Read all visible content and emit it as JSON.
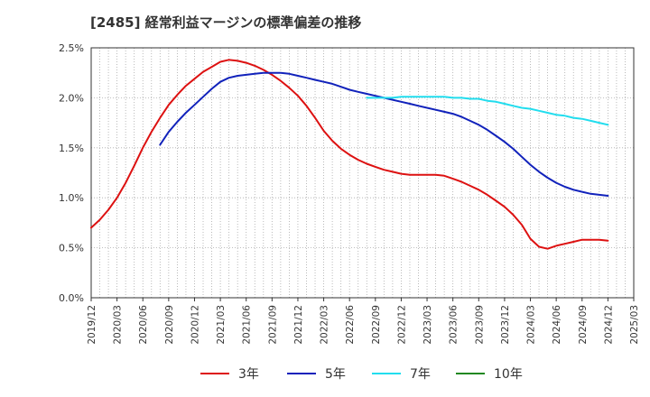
{
  "title": "[2485]  経常利益マージンの標準偏差の推移",
  "colors": {
    "3y": "#dd1111",
    "5y": "#1122bb",
    "7y": "#22ddee",
    "10y": "#228822",
    "grid": "#aaaaaa",
    "axis": "#333333"
  },
  "chart_data": {
    "type": "line",
    "title": "[2485]  経常利益マージンの標準偏差の推移",
    "xlabel": "",
    "ylabel": "",
    "ylim": [
      0,
      2.5
    ],
    "yticks": [
      0,
      0.5,
      1.0,
      1.5,
      2.0,
      2.5
    ],
    "ytick_labels": [
      "0.0%",
      "0.5%",
      "1.0%",
      "1.5%",
      "2.0%",
      "2.5%"
    ],
    "x_start": "2019/12",
    "x_end": "2025/03",
    "xtick_labels": [
      "2019/12",
      "2020/03",
      "2020/06",
      "2020/09",
      "2020/12",
      "2021/03",
      "2021/06",
      "2021/09",
      "2021/12",
      "2022/03",
      "2022/06",
      "2022/09",
      "2022/12",
      "2023/03",
      "2023/06",
      "2023/09",
      "2023/12",
      "2024/03",
      "2024/06",
      "2024/09",
      "2024/12",
      "2025/03"
    ],
    "grid": true,
    "legend_position": "bottom",
    "series": [
      {
        "name": "3年",
        "color": "#dd1111",
        "points": [
          [
            "2019/12",
            0.7
          ],
          [
            "2020/01",
            0.78
          ],
          [
            "2020/02",
            0.88
          ],
          [
            "2020/03",
            1.0
          ],
          [
            "2020/04",
            1.15
          ],
          [
            "2020/05",
            1.32
          ],
          [
            "2020/06",
            1.5
          ],
          [
            "2020/07",
            1.66
          ],
          [
            "2020/08",
            1.8
          ],
          [
            "2020/09",
            1.93
          ],
          [
            "2020/10",
            2.03
          ],
          [
            "2020/11",
            2.12
          ],
          [
            "2020/12",
            2.19
          ],
          [
            "2021/01",
            2.26
          ],
          [
            "2021/02",
            2.31
          ],
          [
            "2021/03",
            2.36
          ],
          [
            "2021/04",
            2.38
          ],
          [
            "2021/05",
            2.37
          ],
          [
            "2021/06",
            2.35
          ],
          [
            "2021/07",
            2.32
          ],
          [
            "2021/08",
            2.28
          ],
          [
            "2021/09",
            2.23
          ],
          [
            "2021/10",
            2.17
          ],
          [
            "2021/11",
            2.1
          ],
          [
            "2021/12",
            2.02
          ],
          [
            "2022/01",
            1.92
          ],
          [
            "2022/02",
            1.8
          ],
          [
            "2022/03",
            1.67
          ],
          [
            "2022/04",
            1.57
          ],
          [
            "2022/05",
            1.49
          ],
          [
            "2022/06",
            1.43
          ],
          [
            "2022/07",
            1.38
          ],
          [
            "2022/08",
            1.34
          ],
          [
            "2022/09",
            1.31
          ],
          [
            "2022/10",
            1.28
          ],
          [
            "2022/11",
            1.26
          ],
          [
            "2022/12",
            1.24
          ],
          [
            "2023/01",
            1.23
          ],
          [
            "2023/02",
            1.23
          ],
          [
            "2023/03",
            1.23
          ],
          [
            "2023/04",
            1.23
          ],
          [
            "2023/05",
            1.22
          ],
          [
            "2023/06",
            1.19
          ],
          [
            "2023/07",
            1.16
          ],
          [
            "2023/08",
            1.12
          ],
          [
            "2023/09",
            1.08
          ],
          [
            "2023/10",
            1.03
          ],
          [
            "2023/11",
            0.97
          ],
          [
            "2023/12",
            0.91
          ],
          [
            "2024/01",
            0.83
          ],
          [
            "2024/02",
            0.73
          ],
          [
            "2024/03",
            0.59
          ],
          [
            "2024/04",
            0.51
          ],
          [
            "2024/05",
            0.49
          ],
          [
            "2024/06",
            0.52
          ],
          [
            "2024/07",
            0.54
          ],
          [
            "2024/08",
            0.56
          ],
          [
            "2024/09",
            0.58
          ],
          [
            "2024/10",
            0.58
          ],
          [
            "2024/11",
            0.58
          ],
          [
            "2024/12",
            0.57
          ]
        ]
      },
      {
        "name": "5年",
        "color": "#1122bb",
        "points": [
          [
            "2020/08",
            1.53
          ],
          [
            "2020/09",
            1.66
          ],
          [
            "2020/10",
            1.76
          ],
          [
            "2020/11",
            1.85
          ],
          [
            "2020/12",
            1.93
          ],
          [
            "2021/01",
            2.01
          ],
          [
            "2021/02",
            2.09
          ],
          [
            "2021/03",
            2.16
          ],
          [
            "2021/04",
            2.2
          ],
          [
            "2021/05",
            2.22
          ],
          [
            "2021/06",
            2.23
          ],
          [
            "2021/07",
            2.24
          ],
          [
            "2021/08",
            2.25
          ],
          [
            "2021/09",
            2.25
          ],
          [
            "2021/10",
            2.25
          ],
          [
            "2021/11",
            2.24
          ],
          [
            "2021/12",
            2.22
          ],
          [
            "2022/01",
            2.2
          ],
          [
            "2022/02",
            2.18
          ],
          [
            "2022/03",
            2.16
          ],
          [
            "2022/04",
            2.14
          ],
          [
            "2022/05",
            2.11
          ],
          [
            "2022/06",
            2.08
          ],
          [
            "2022/07",
            2.06
          ],
          [
            "2022/08",
            2.04
          ],
          [
            "2022/09",
            2.02
          ],
          [
            "2022/10",
            2.0
          ],
          [
            "2022/11",
            1.98
          ],
          [
            "2022/12",
            1.96
          ],
          [
            "2023/01",
            1.94
          ],
          [
            "2023/02",
            1.92
          ],
          [
            "2023/03",
            1.9
          ],
          [
            "2023/04",
            1.88
          ],
          [
            "2023/05",
            1.86
          ],
          [
            "2023/06",
            1.84
          ],
          [
            "2023/07",
            1.81
          ],
          [
            "2023/08",
            1.77
          ],
          [
            "2023/09",
            1.73
          ],
          [
            "2023/10",
            1.68
          ],
          [
            "2023/11",
            1.62
          ],
          [
            "2023/12",
            1.56
          ],
          [
            "2024/01",
            1.49
          ],
          [
            "2024/02",
            1.41
          ],
          [
            "2024/03",
            1.33
          ],
          [
            "2024/04",
            1.26
          ],
          [
            "2024/05",
            1.2
          ],
          [
            "2024/06",
            1.15
          ],
          [
            "2024/07",
            1.11
          ],
          [
            "2024/08",
            1.08
          ],
          [
            "2024/09",
            1.06
          ],
          [
            "2024/10",
            1.04
          ],
          [
            "2024/11",
            1.03
          ],
          [
            "2024/12",
            1.02
          ]
        ]
      },
      {
        "name": "7年",
        "color": "#22ddee",
        "points": [
          [
            "2022/08",
            2.0
          ],
          [
            "2022/09",
            2.0
          ],
          [
            "2022/10",
            2.0
          ],
          [
            "2022/11",
            2.0
          ],
          [
            "2022/12",
            2.01
          ],
          [
            "2023/01",
            2.01
          ],
          [
            "2023/02",
            2.01
          ],
          [
            "2023/03",
            2.01
          ],
          [
            "2023/04",
            2.01
          ],
          [
            "2023/05",
            2.01
          ],
          [
            "2023/06",
            2.0
          ],
          [
            "2023/07",
            2.0
          ],
          [
            "2023/08",
            1.99
          ],
          [
            "2023/09",
            1.99
          ],
          [
            "2023/10",
            1.97
          ],
          [
            "2023/11",
            1.96
          ],
          [
            "2023/12",
            1.94
          ],
          [
            "2024/01",
            1.92
          ],
          [
            "2024/02",
            1.9
          ],
          [
            "2024/03",
            1.89
          ],
          [
            "2024/04",
            1.87
          ],
          [
            "2024/05",
            1.85
          ],
          [
            "2024/06",
            1.83
          ],
          [
            "2024/07",
            1.82
          ],
          [
            "2024/08",
            1.8
          ],
          [
            "2024/09",
            1.79
          ],
          [
            "2024/10",
            1.77
          ],
          [
            "2024/11",
            1.75
          ],
          [
            "2024/12",
            1.73
          ]
        ]
      },
      {
        "name": "10年",
        "color": "#228822",
        "points": []
      }
    ]
  }
}
